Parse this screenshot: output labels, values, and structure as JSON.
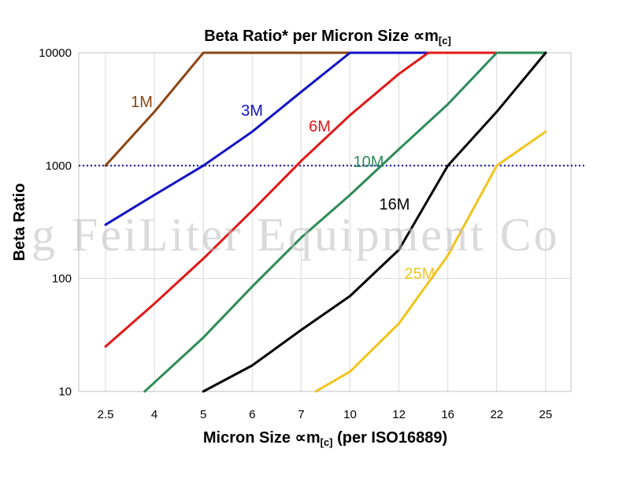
{
  "chart_data": {
    "type": "line",
    "title": "Beta Ratio* per Micron Size ∝m",
    "title_sub": "[c]",
    "xlabel": "Micron Size ∝m",
    "xlabel_sub": "[c]",
    "xlabel_suffix": " (per ISO16889)",
    "ylabel": "Beta Ratio",
    "x_scale": "categorical",
    "y_scale": "log",
    "ylim": [
      10,
      10000
    ],
    "categories": [
      "2.5",
      "4",
      "5",
      "6",
      "7",
      "10",
      "12",
      "16",
      "22",
      "25"
    ],
    "y_ticks": [
      "10",
      "100",
      "1000",
      "10000"
    ],
    "grid": true,
    "reference_line": {
      "y": 1000,
      "color": "#1a1aa8",
      "style": "dotted"
    },
    "watermark": "g FeiLiter Equipment Co",
    "series": [
      {
        "name": "1M",
        "color": "#8b4513",
        "points": [
          [
            0,
            1000
          ],
          [
            1,
            3000
          ],
          [
            2,
            10000
          ],
          [
            9,
            10000
          ]
        ]
      },
      {
        "name": "3M",
        "color": "#1010c8",
        "points": [
          [
            0,
            300
          ],
          [
            1,
            550
          ],
          [
            2,
            1000
          ],
          [
            3,
            2000
          ],
          [
            4,
            4500
          ],
          [
            5,
            10000
          ],
          [
            9,
            10000
          ]
        ]
      },
      {
        "name": "6M",
        "color": "#e01818",
        "points": [
          [
            0,
            25
          ],
          [
            1,
            60
          ],
          [
            2,
            150
          ],
          [
            3,
            400
          ],
          [
            4,
            1100
          ],
          [
            5,
            2800
          ],
          [
            6,
            6500
          ],
          [
            6.6,
            10000
          ],
          [
            9,
            10000
          ]
        ]
      },
      {
        "name": "10M",
        "color": "#2e8b57",
        "points": [
          [
            0.8,
            10
          ],
          [
            1,
            12
          ],
          [
            2,
            30
          ],
          [
            3,
            85
          ],
          [
            4,
            230
          ],
          [
            5,
            550
          ],
          [
            6,
            1400
          ],
          [
            7,
            3500
          ],
          [
            8,
            10000
          ],
          [
            9,
            10000
          ]
        ]
      },
      {
        "name": "16M",
        "color": "#000000",
        "points": [
          [
            2,
            10
          ],
          [
            3,
            17
          ],
          [
            4,
            35
          ],
          [
            5,
            70
          ],
          [
            6,
            180
          ],
          [
            7,
            1000
          ],
          [
            8,
            3000
          ],
          [
            9,
            10000
          ]
        ]
      },
      {
        "name": "25M",
        "color": "#f2c31a",
        "points": [
          [
            4.3,
            10
          ],
          [
            5,
            15
          ],
          [
            6,
            40
          ],
          [
            7,
            160
          ],
          [
            8,
            1000
          ],
          [
            9,
            2000
          ]
        ]
      }
    ]
  }
}
